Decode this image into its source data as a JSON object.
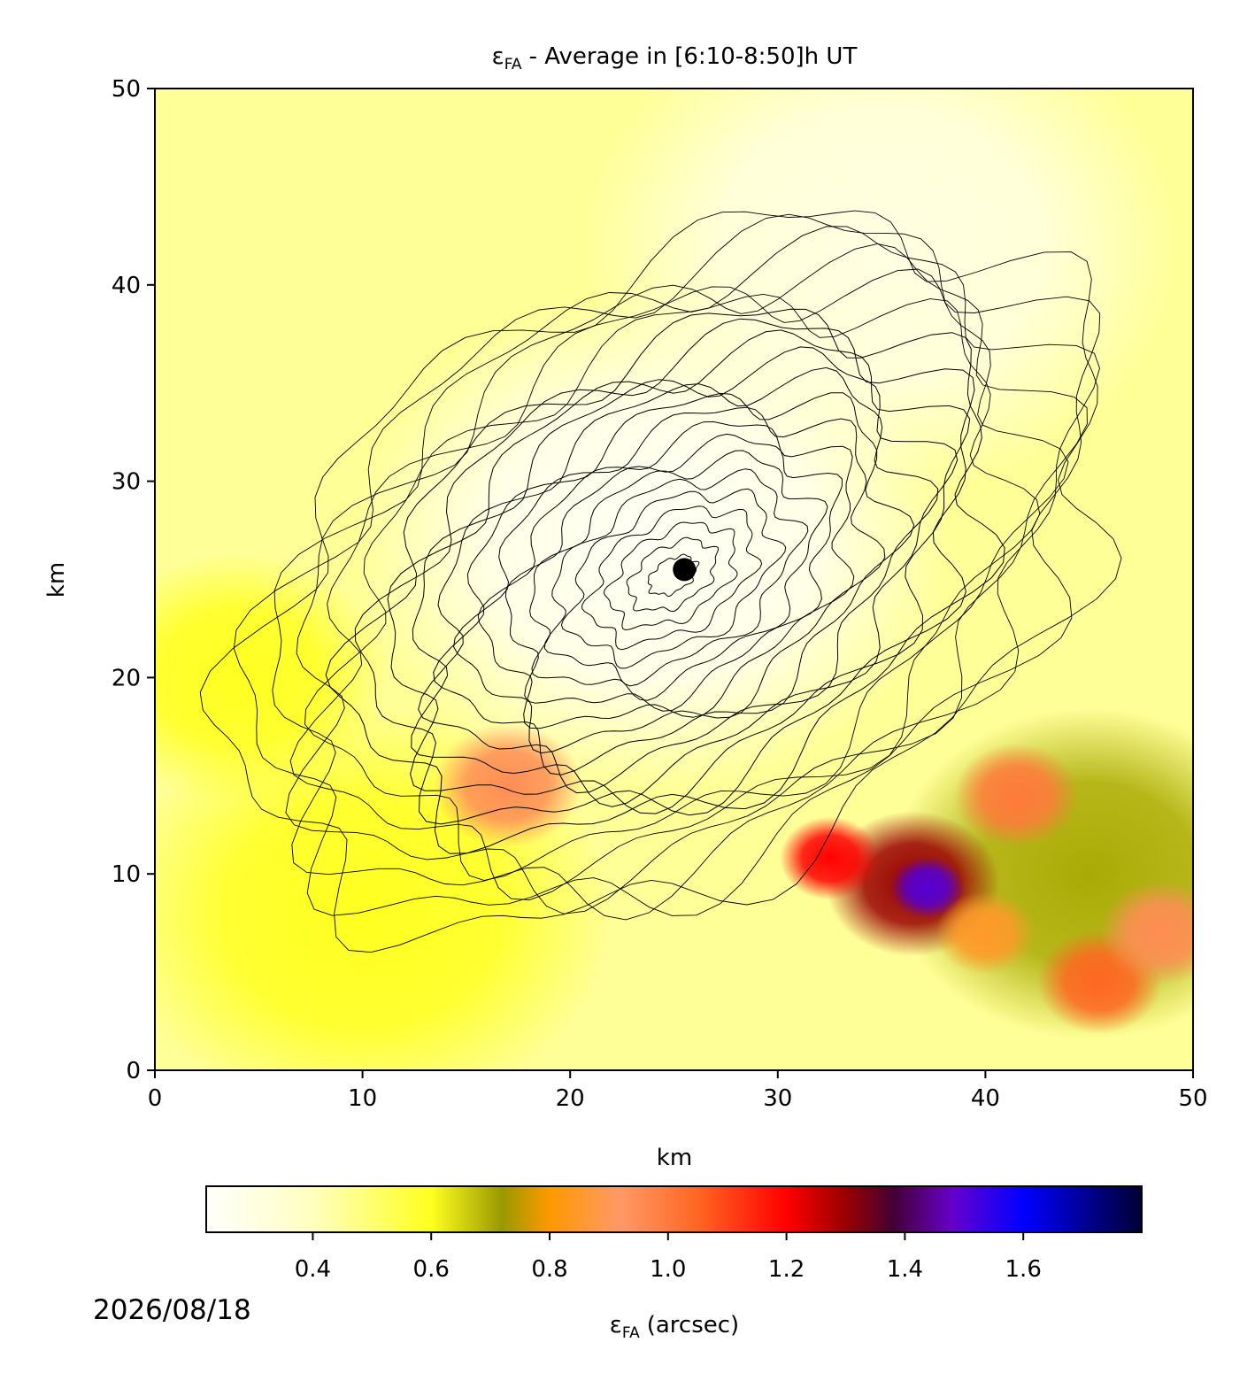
{
  "chart_data": {
    "type": "heatmap",
    "title": {
      "symbol": "ε",
      "subscript": "FA",
      "text": "- Average in [6:10-8:50]h UT"
    },
    "xlabel": "km",
    "ylabel": "km",
    "xlim": [
      0,
      50
    ],
    "ylim": [
      0,
      50
    ],
    "xticks": [
      0,
      10,
      20,
      30,
      40,
      50
    ],
    "yticks": [
      0,
      10,
      20,
      30,
      40,
      50
    ],
    "background_value": 0.45,
    "hotspots": [
      {
        "x": 24,
        "y": 27,
        "value": 0.25,
        "radius_km": 12
      },
      {
        "x": 35,
        "y": 42,
        "value": 0.3,
        "radius_km": 12
      },
      {
        "x": 10,
        "y": 8,
        "value": 0.6,
        "radius_km": 10
      },
      {
        "x": 4,
        "y": 20,
        "value": 0.6,
        "radius_km": 6
      },
      {
        "x": 45,
        "y": 10,
        "value": 0.7,
        "radius_km": 8
      },
      {
        "x": 17,
        "y": 14.5,
        "value": 0.95,
        "radius_km": 3
      },
      {
        "x": 36.5,
        "y": 9.5,
        "value": 1.3,
        "radius_km": 3.5
      },
      {
        "x": 32.5,
        "y": 10.8,
        "value": 1.2,
        "radius_km": 2
      },
      {
        "x": 37.2,
        "y": 9.3,
        "value": 1.5,
        "radius_km": 1.5
      },
      {
        "x": 41.5,
        "y": 14,
        "value": 1.0,
        "radius_km": 2.5
      },
      {
        "x": 45.5,
        "y": 4.5,
        "value": 1.05,
        "radius_km": 2.5
      },
      {
        "x": 48.5,
        "y": 7,
        "value": 0.95,
        "radius_km": 2.5
      },
      {
        "x": 40,
        "y": 7,
        "value": 0.85,
        "radius_km": 2
      }
    ],
    "marker": {
      "x": 25.5,
      "y": 25.5,
      "color": "#000000"
    },
    "colormap": [
      {
        "value": 0.22,
        "color": "#ffffff"
      },
      {
        "value": 0.4,
        "color": "#ffffc0"
      },
      {
        "value": 0.6,
        "color": "#ffff20"
      },
      {
        "value": 0.72,
        "color": "#999900"
      },
      {
        "value": 0.8,
        "color": "#ff9900"
      },
      {
        "value": 0.92,
        "color": "#ff9966"
      },
      {
        "value": 1.05,
        "color": "#ff6622"
      },
      {
        "value": 1.2,
        "color": "#ff0000"
      },
      {
        "value": 1.3,
        "color": "#990000"
      },
      {
        "value": 1.38,
        "color": "#440033"
      },
      {
        "value": 1.48,
        "color": "#6600cc"
      },
      {
        "value": 1.6,
        "color": "#0000ff"
      },
      {
        "value": 1.8,
        "color": "#000033"
      }
    ],
    "colorbar": {
      "clim": [
        0.22,
        1.8
      ],
      "ticks": [
        {
          "value": 0.4,
          "label": "0.4"
        },
        {
          "value": 0.6,
          "label": "0.6"
        },
        {
          "value": 0.8,
          "label": "0.8"
        },
        {
          "value": 1.0,
          "label": "1.0"
        },
        {
          "value": 1.2,
          "label": "1.2"
        },
        {
          "value": 1.4,
          "label": "1.4"
        },
        {
          "value": 1.6,
          "label": "1.6"
        }
      ],
      "label": {
        "symbol": "ε",
        "subscript": "FA",
        "text": "(arcsec)"
      }
    },
    "date": "2026/08/18"
  }
}
